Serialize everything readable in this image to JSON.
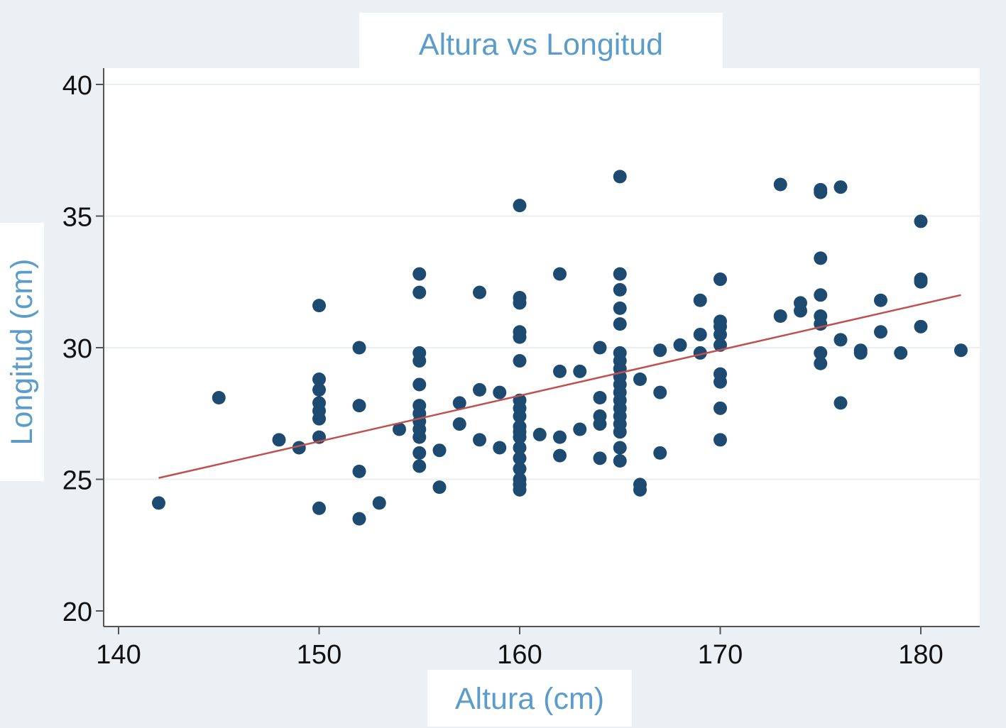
{
  "chart_data": {
    "type": "scatter",
    "title": "Altura vs Longitud",
    "xlabel": "Altura (cm)",
    "ylabel": "Longitud (cm)",
    "xlim": [
      140,
      182
    ],
    "ylim": [
      20,
      40
    ],
    "xticks": [
      140,
      150,
      160,
      170,
      180
    ],
    "yticks": [
      20,
      25,
      30,
      35,
      40
    ],
    "grid": "horizontal",
    "colors": {
      "points": "#1c4a70",
      "fit_line": "#c0504d",
      "title": "#5b9ccb",
      "plot_background": "#ffffff",
      "outer_background": "#eaf0f3",
      "grid": "#e8eef2",
      "axis": "#555555"
    },
    "series": [
      {
        "type": "scatter",
        "points": [
          [
            142,
            24.1
          ],
          [
            145,
            28.1
          ],
          [
            148,
            26.5
          ],
          [
            149,
            26.2
          ],
          [
            150,
            31.6
          ],
          [
            150,
            28.8
          ],
          [
            150,
            28.4
          ],
          [
            150,
            27.9
          ],
          [
            150,
            27.6
          ],
          [
            150,
            27.3
          ],
          [
            150,
            26.6
          ],
          [
            150,
            23.9
          ],
          [
            152,
            30.0
          ],
          [
            152,
            27.8
          ],
          [
            152,
            25.3
          ],
          [
            152,
            23.5
          ],
          [
            153,
            24.1
          ],
          [
            154,
            26.9
          ],
          [
            155,
            32.8
          ],
          [
            155,
            32.1
          ],
          [
            155,
            29.8
          ],
          [
            155,
            29.5
          ],
          [
            155,
            28.6
          ],
          [
            155,
            27.8
          ],
          [
            155,
            27.5
          ],
          [
            155,
            27.2
          ],
          [
            155,
            26.9
          ],
          [
            155,
            26.6
          ],
          [
            155,
            26.0
          ],
          [
            155,
            25.5
          ],
          [
            156,
            26.1
          ],
          [
            156,
            24.7
          ],
          [
            157,
            27.9
          ],
          [
            157,
            27.1
          ],
          [
            158,
            32.1
          ],
          [
            158,
            28.4
          ],
          [
            158,
            26.5
          ],
          [
            159,
            28.3
          ],
          [
            159,
            26.2
          ],
          [
            160,
            35.4
          ],
          [
            160,
            31.9
          ],
          [
            160,
            31.7
          ],
          [
            160,
            30.6
          ],
          [
            160,
            30.4
          ],
          [
            160,
            29.5
          ],
          [
            160,
            28.0
          ],
          [
            160,
            27.7
          ],
          [
            160,
            27.4
          ],
          [
            160,
            27.0
          ],
          [
            160,
            26.8
          ],
          [
            160,
            26.6
          ],
          [
            160,
            26.2
          ],
          [
            160,
            25.8
          ],
          [
            160,
            25.4
          ],
          [
            160,
            25.0
          ],
          [
            160,
            24.8
          ],
          [
            160,
            24.6
          ],
          [
            161,
            26.7
          ],
          [
            162,
            32.8
          ],
          [
            162,
            29.1
          ],
          [
            162,
            26.6
          ],
          [
            162,
            25.9
          ],
          [
            163,
            29.1
          ],
          [
            163,
            26.9
          ],
          [
            164,
            30.0
          ],
          [
            164,
            28.1
          ],
          [
            164,
            27.4
          ],
          [
            164,
            27.1
          ],
          [
            164,
            25.8
          ],
          [
            165,
            36.5
          ],
          [
            165,
            32.8
          ],
          [
            165,
            32.2
          ],
          [
            165,
            31.5
          ],
          [
            165,
            30.9
          ],
          [
            165,
            29.8
          ],
          [
            165,
            29.5
          ],
          [
            165,
            29.2
          ],
          [
            165,
            28.9
          ],
          [
            165,
            28.6
          ],
          [
            165,
            28.3
          ],
          [
            165,
            28.0
          ],
          [
            165,
            27.7
          ],
          [
            165,
            27.4
          ],
          [
            165,
            27.1
          ],
          [
            165,
            26.8
          ],
          [
            165,
            26.2
          ],
          [
            165,
            25.7
          ],
          [
            166,
            28.8
          ],
          [
            166,
            24.8
          ],
          [
            166,
            24.6
          ],
          [
            167,
            29.9
          ],
          [
            167,
            28.3
          ],
          [
            167,
            26.0
          ],
          [
            168,
            30.1
          ],
          [
            169,
            31.8
          ],
          [
            169,
            30.5
          ],
          [
            169,
            29.8
          ],
          [
            170,
            32.6
          ],
          [
            170,
            31.0
          ],
          [
            170,
            30.8
          ],
          [
            170,
            30.5
          ],
          [
            170,
            30.1
          ],
          [
            170,
            29.0
          ],
          [
            170,
            28.7
          ],
          [
            170,
            27.7
          ],
          [
            170,
            26.5
          ],
          [
            173,
            36.2
          ],
          [
            173,
            31.2
          ],
          [
            174,
            31.7
          ],
          [
            174,
            31.4
          ],
          [
            175,
            36.0
          ],
          [
            175,
            35.9
          ],
          [
            175,
            33.4
          ],
          [
            175,
            32.0
          ],
          [
            175,
            31.2
          ],
          [
            175,
            30.9
          ],
          [
            175,
            29.8
          ],
          [
            175,
            29.4
          ],
          [
            176,
            36.1
          ],
          [
            176,
            30.3
          ],
          [
            176,
            27.9
          ],
          [
            177,
            29.9
          ],
          [
            177,
            29.8
          ],
          [
            178,
            31.8
          ],
          [
            178,
            30.6
          ],
          [
            179,
            29.8
          ],
          [
            180,
            34.8
          ],
          [
            180,
            32.6
          ],
          [
            180,
            32.5
          ],
          [
            180,
            30.8
          ],
          [
            182,
            29.9
          ]
        ]
      },
      {
        "type": "line",
        "x": [
          142,
          182
        ],
        "y": [
          25.05,
          32.0
        ]
      }
    ]
  }
}
